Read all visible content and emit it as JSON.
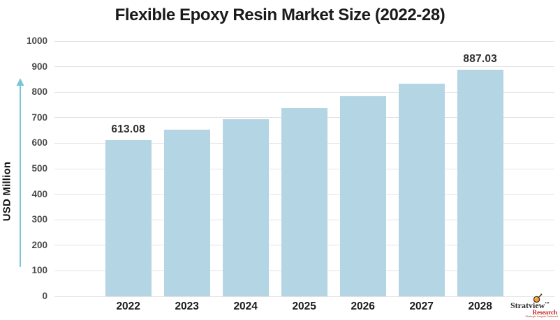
{
  "chart_data": {
    "type": "bar",
    "title": "Flexible Epoxy Resin Market Size (2022-28)",
    "ylabel": "USD Million",
    "xlabel": "",
    "categories": [
      "2022",
      "2023",
      "2024",
      "2025",
      "2026",
      "2027",
      "2028"
    ],
    "values": [
      613.08,
      652,
      693.5,
      737.5,
      784.4,
      834.2,
      887.03
    ],
    "display_labels": [
      "613.08",
      "",
      "",
      "",
      "",
      "",
      "887.03"
    ],
    "ylim": [
      0,
      1000
    ],
    "ytick_step": 100,
    "grid": "horizontal-only",
    "legend": "none",
    "bar_color": "#b4d5e4",
    "gridline_color": "#e3e3e3"
  },
  "colors": {
    "title_text": "#1a1a1a",
    "y_tick_text": "#4a4a4a",
    "x_tick_text": "#1c1c1c",
    "value_label_text": "#2f2f2f",
    "axis_arrow": "#7cc5d9",
    "logo_red": "#c41e1e",
    "logo_dark": "#2b2b2b"
  },
  "logo": {
    "brand": "Stratview",
    "trademark": "™",
    "research": "Research",
    "tagline": "Strategic Insights Delivered"
  }
}
